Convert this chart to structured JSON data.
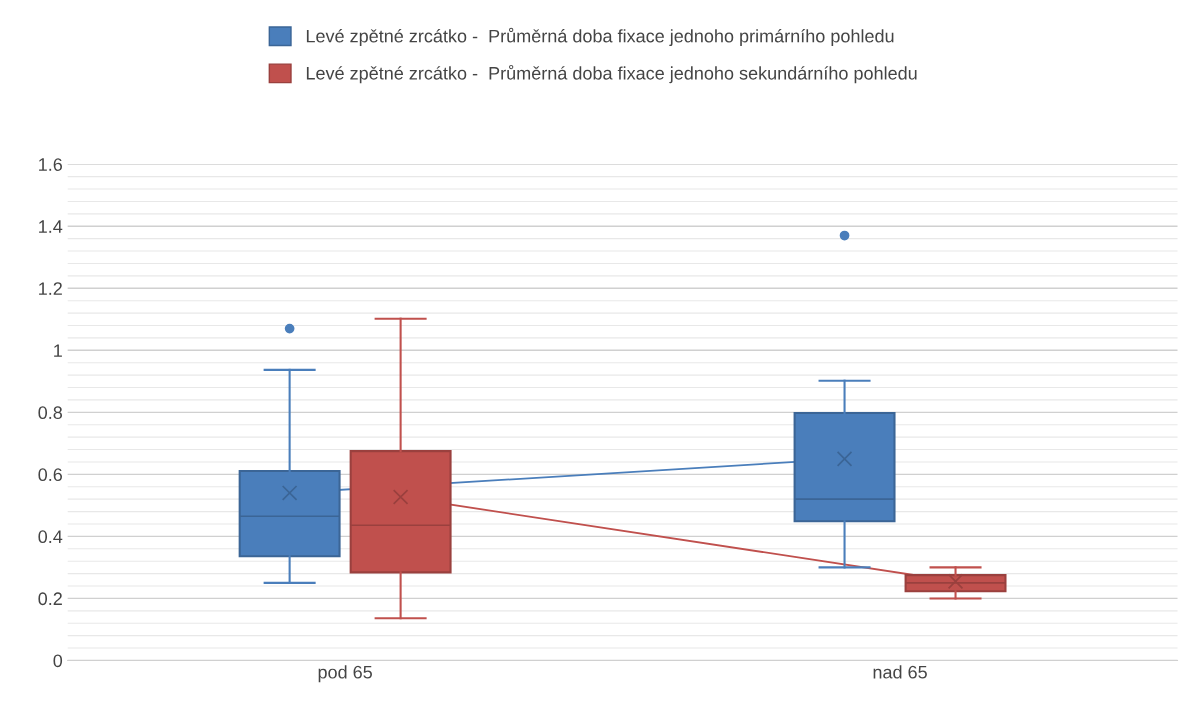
{
  "chart_data": {
    "type": "box",
    "categories": [
      "pod 65",
      "nad 65"
    ],
    "series": [
      {
        "name": "Levé zpětné zrcátko -  Průměrná doba fixace jednoho primárního pohledu",
        "color": "#4a7ebb",
        "boxes": [
          {
            "low": 0.25,
            "q1": 0.336,
            "median": 0.465,
            "q3": 0.611,
            "high": 0.937,
            "mean": 0.54,
            "outliers": [
              1.07
            ]
          },
          {
            "low": 0.3,
            "q1": 0.449,
            "median": 0.52,
            "q3": 0.798,
            "high": 0.902,
            "mean": 0.65,
            "outliers": [
              1.37
            ]
          }
        ]
      },
      {
        "name": "Levé zpětné zrcátko -  Průměrná doba fixace jednoho sekundárního pohledu",
        "color": "#c0504d",
        "boxes": [
          {
            "low": 0.136,
            "q1": 0.284,
            "median": 0.436,
            "q3": 0.675,
            "high": 1.102,
            "mean": 0.527
          },
          {
            "low": 0.2,
            "q1": 0.223,
            "median": 0.25,
            "q3": 0.275,
            "high": 0.3,
            "mean": 0.255
          }
        ]
      },
      {
        "type": "line",
        "color": "#4a7ebb",
        "values": [
          0.54,
          0.65
        ]
      },
      {
        "type": "line",
        "color": "#c0504d",
        "values": [
          0.527,
          0.255
        ]
      }
    ],
    "ylim": [
      0,
      1.6
    ],
    "yticks": [
      0,
      0.2,
      0.4,
      0.6,
      0.8,
      1,
      1.2,
      1.4,
      1.6
    ],
    "grid": "y",
    "legend": "top"
  }
}
